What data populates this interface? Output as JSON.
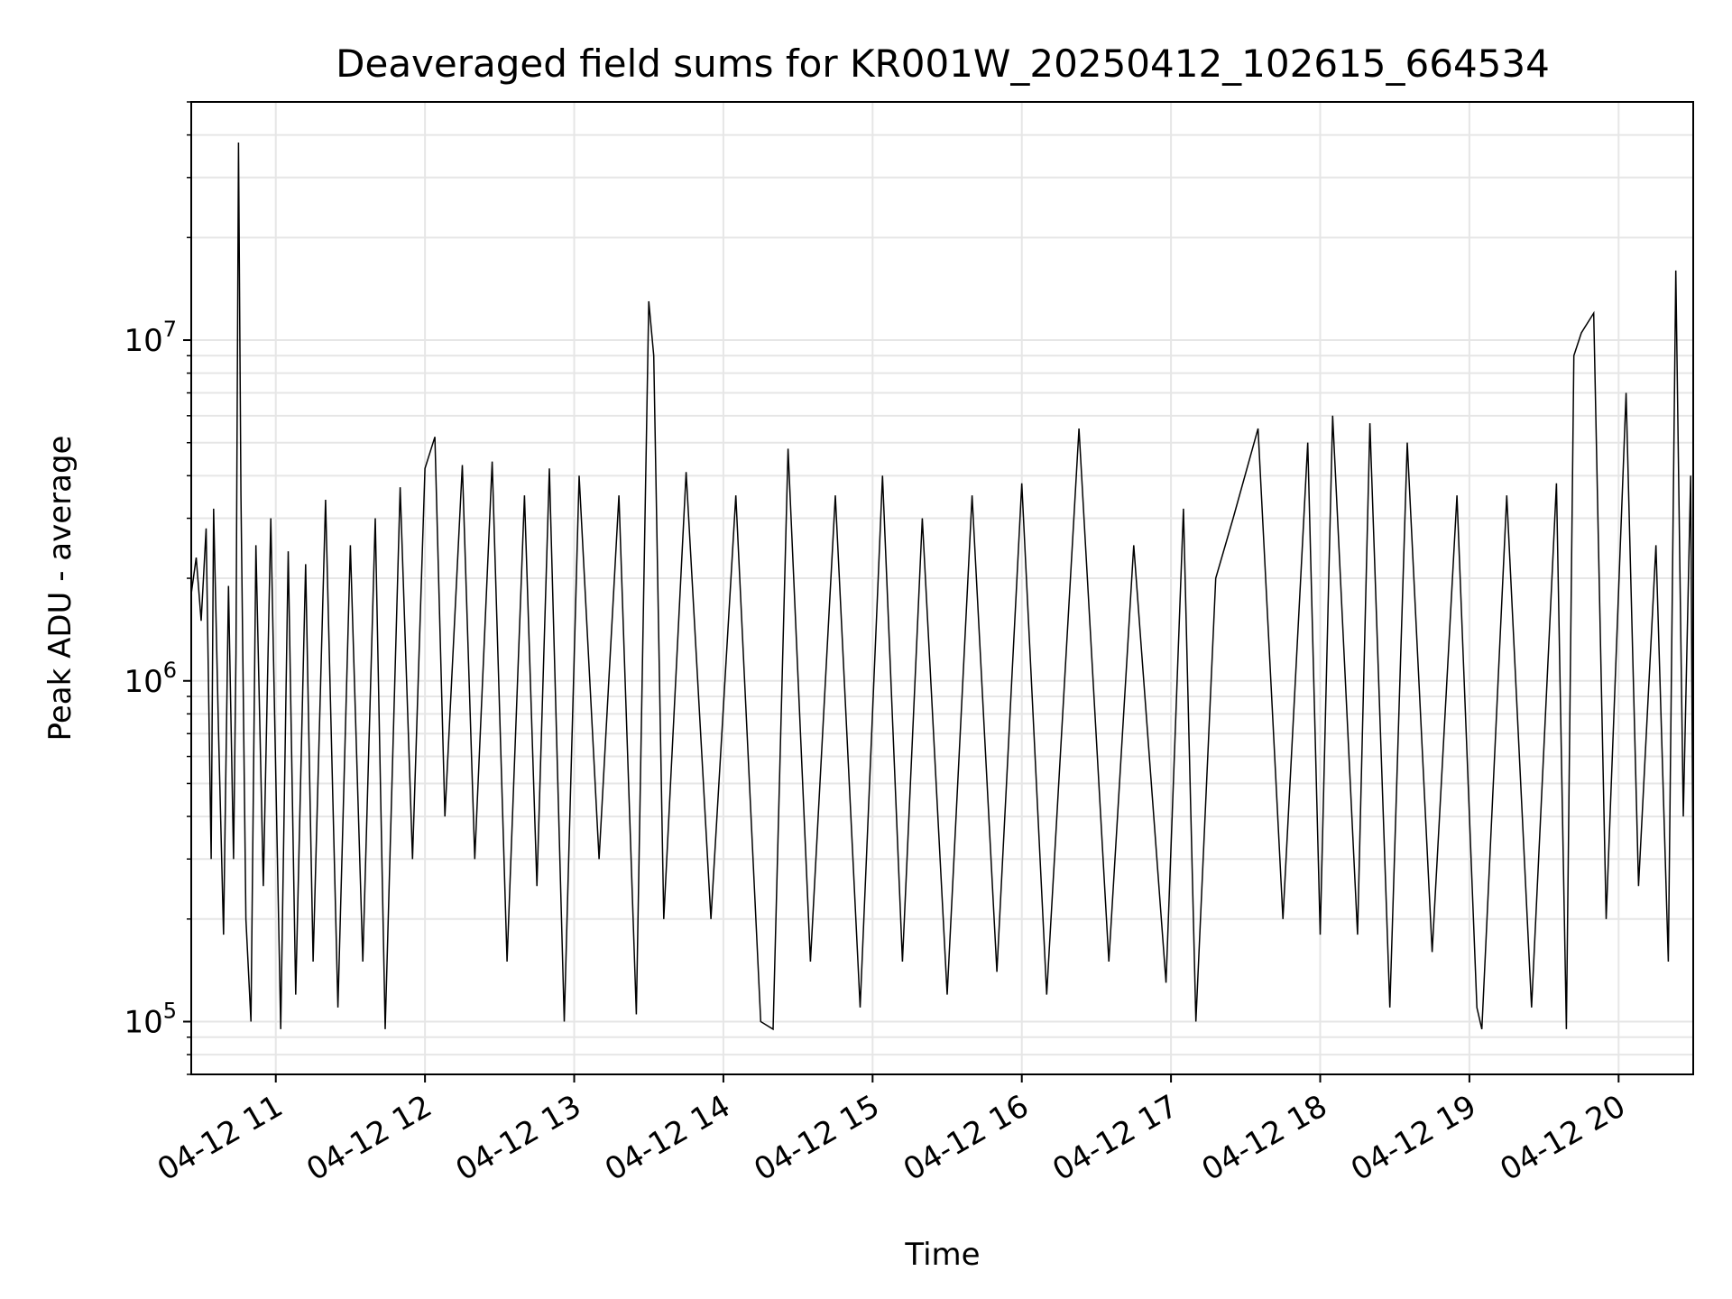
{
  "chart_data": {
    "type": "line",
    "title": "Deaveraged field sums for KR001W_20250412_102615_664534",
    "xlabel": "Time",
    "ylabel": "Peak ADU - average",
    "yscale": "log",
    "xlim": [
      "2025-04-12 10:26",
      "2025-04-12 20:30"
    ],
    "ylim": [
      70000,
      50000000
    ],
    "grid": true,
    "line_color": "#000000",
    "x_ticks": [
      {
        "label": "04-12 11",
        "value": "2025-04-12 11:00"
      },
      {
        "label": "04-12 12",
        "value": "2025-04-12 12:00"
      },
      {
        "label": "04-12 13",
        "value": "2025-04-12 13:00"
      },
      {
        "label": "04-12 14",
        "value": "2025-04-12 14:00"
      },
      {
        "label": "04-12 15",
        "value": "2025-04-12 15:00"
      },
      {
        "label": "04-12 16",
        "value": "2025-04-12 16:00"
      },
      {
        "label": "04-12 17",
        "value": "2025-04-12 17:00"
      },
      {
        "label": "04-12 18",
        "value": "2025-04-12 18:00"
      },
      {
        "label": "04-12 19",
        "value": "2025-04-12 19:00"
      },
      {
        "label": "04-12 20",
        "value": "2025-04-12 20:00"
      }
    ],
    "y_ticks": [
      {
        "base": "10",
        "exp": "5",
        "value": 100000
      },
      {
        "base": "10",
        "exp": "6",
        "value": 1000000
      },
      {
        "base": "10",
        "exp": "7",
        "value": 10000000
      }
    ],
    "series": [
      {
        "points": [
          [
            "2025-04-12 10:26",
            1800000
          ],
          [
            "2025-04-12 10:28",
            2300000
          ],
          [
            "2025-04-12 10:30",
            1500000
          ],
          [
            "2025-04-12 10:32",
            2800000
          ],
          [
            "2025-04-12 10:34",
            300000
          ],
          [
            "2025-04-12 10:35",
            3200000
          ],
          [
            "2025-04-12 10:37",
            700000
          ],
          [
            "2025-04-12 10:39",
            180000
          ],
          [
            "2025-04-12 10:41",
            1900000
          ],
          [
            "2025-04-12 10:43",
            300000
          ],
          [
            "2025-04-12 10:44",
            1200000
          ],
          [
            "2025-04-12 10:45",
            38000000
          ],
          [
            "2025-04-12 10:46",
            3500000
          ],
          [
            "2025-04-12 10:48",
            200000
          ],
          [
            "2025-04-12 10:50",
            100000
          ],
          [
            "2025-04-12 10:52",
            2500000
          ],
          [
            "2025-04-12 10:55",
            250000
          ],
          [
            "2025-04-12 10:58",
            3000000
          ],
          [
            "2025-04-12 11:02",
            95000
          ],
          [
            "2025-04-12 11:05",
            2400000
          ],
          [
            "2025-04-12 11:08",
            120000
          ],
          [
            "2025-04-12 11:12",
            2200000
          ],
          [
            "2025-04-12 11:15",
            150000
          ],
          [
            "2025-04-12 11:20",
            3400000
          ],
          [
            "2025-04-12 11:25",
            110000
          ],
          [
            "2025-04-12 11:30",
            2500000
          ],
          [
            "2025-04-12 11:35",
            150000
          ],
          [
            "2025-04-12 11:40",
            3000000
          ],
          [
            "2025-04-12 11:44",
            95000
          ],
          [
            "2025-04-12 11:50",
            3700000
          ],
          [
            "2025-04-12 11:55",
            300000
          ],
          [
            "2025-04-12 12:00",
            4200000
          ],
          [
            "2025-04-12 12:04",
            5200000
          ],
          [
            "2025-04-12 12:08",
            400000
          ],
          [
            "2025-04-12 12:15",
            4300000
          ],
          [
            "2025-04-12 12:20",
            300000
          ],
          [
            "2025-04-12 12:27",
            4400000
          ],
          [
            "2025-04-12 12:33",
            150000
          ],
          [
            "2025-04-12 12:40",
            3500000
          ],
          [
            "2025-04-12 12:45",
            250000
          ],
          [
            "2025-04-12 12:50",
            4200000
          ],
          [
            "2025-04-12 12:56",
            100000
          ],
          [
            "2025-04-12 13:02",
            4000000
          ],
          [
            "2025-04-12 13:10",
            300000
          ],
          [
            "2025-04-12 13:18",
            3500000
          ],
          [
            "2025-04-12 13:25",
            105000
          ],
          [
            "2025-04-12 13:30",
            13000000
          ],
          [
            "2025-04-12 13:32",
            9000000
          ],
          [
            "2025-04-12 13:36",
            200000
          ],
          [
            "2025-04-12 13:45",
            4100000
          ],
          [
            "2025-04-12 13:55",
            200000
          ],
          [
            "2025-04-12 14:05",
            3500000
          ],
          [
            "2025-04-12 14:15",
            100000
          ],
          [
            "2025-04-12 14:20",
            95000
          ],
          [
            "2025-04-12 14:26",
            4800000
          ],
          [
            "2025-04-12 14:35",
            150000
          ],
          [
            "2025-04-12 14:45",
            3500000
          ],
          [
            "2025-04-12 14:55",
            110000
          ],
          [
            "2025-04-12 15:04",
            4000000
          ],
          [
            "2025-04-12 15:12",
            150000
          ],
          [
            "2025-04-12 15:20",
            3000000
          ],
          [
            "2025-04-12 15:30",
            120000
          ],
          [
            "2025-04-12 15:40",
            3500000
          ],
          [
            "2025-04-12 15:50",
            140000
          ],
          [
            "2025-04-12 16:00",
            3800000
          ],
          [
            "2025-04-12 16:10",
            120000
          ],
          [
            "2025-04-12 16:23",
            5500000
          ],
          [
            "2025-04-12 16:35",
            150000
          ],
          [
            "2025-04-12 16:45",
            2500000
          ],
          [
            "2025-04-12 16:58",
            130000
          ],
          [
            "2025-04-12 17:05",
            3200000
          ],
          [
            "2025-04-12 17:10",
            100000
          ],
          [
            "2025-04-12 17:18",
            2000000
          ],
          [
            "2025-04-12 17:25",
            3000000
          ],
          [
            "2025-04-12 17:35",
            5500000
          ],
          [
            "2025-04-12 17:45",
            200000
          ],
          [
            "2025-04-12 17:55",
            5000000
          ],
          [
            "2025-04-12 18:00",
            180000
          ],
          [
            "2025-04-12 18:05",
            6000000
          ],
          [
            "2025-04-12 18:15",
            180000
          ],
          [
            "2025-04-12 18:20",
            5700000
          ],
          [
            "2025-04-12 18:28",
            110000
          ],
          [
            "2025-04-12 18:35",
            5000000
          ],
          [
            "2025-04-12 18:45",
            160000
          ],
          [
            "2025-04-12 18:55",
            3500000
          ],
          [
            "2025-04-12 19:03",
            110000
          ],
          [
            "2025-04-12 19:05",
            95000
          ],
          [
            "2025-04-12 19:15",
            3500000
          ],
          [
            "2025-04-12 19:25",
            110000
          ],
          [
            "2025-04-12 19:35",
            3800000
          ],
          [
            "2025-04-12 19:39",
            95000
          ],
          [
            "2025-04-12 19:42",
            9000000
          ],
          [
            "2025-04-12 19:45",
            10500000
          ],
          [
            "2025-04-12 19:50",
            12000000
          ],
          [
            "2025-04-12 19:55",
            200000
          ],
          [
            "2025-04-12 20:03",
            7000000
          ],
          [
            "2025-04-12 20:08",
            250000
          ],
          [
            "2025-04-12 20:15",
            2500000
          ],
          [
            "2025-04-12 20:20",
            150000
          ],
          [
            "2025-04-12 20:23",
            16000000
          ],
          [
            "2025-04-12 20:26",
            400000
          ],
          [
            "2025-04-12 20:29",
            4000000
          ],
          [
            "2025-04-12 20:30",
            210000
          ]
        ]
      }
    ]
  }
}
